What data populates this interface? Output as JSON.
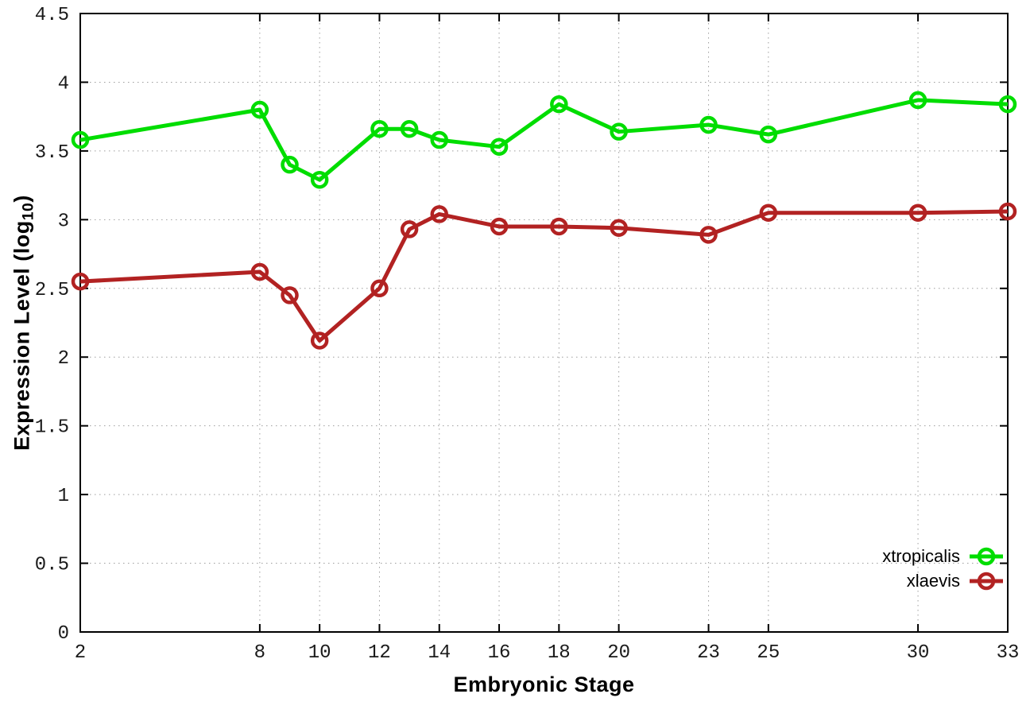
{
  "chart_data": {
    "type": "line",
    "title": "",
    "xlabel": "Embryonic Stage",
    "ylabel_main": "Expression Level (log",
    "ylabel_sub": "10",
    "ylabel_end": ")",
    "xlim": [
      2,
      33
    ],
    "ylim": [
      0,
      4.5
    ],
    "grid": true,
    "legend_position": "bottom-right",
    "x_ticks": [
      2,
      8,
      10,
      12,
      14,
      16,
      18,
      20,
      23,
      25,
      30,
      33
    ],
    "y_ticks": [
      0,
      0.5,
      1,
      1.5,
      2,
      2.5,
      3,
      3.5,
      4,
      4.5
    ],
    "x": [
      2,
      8,
      9,
      10,
      12,
      13,
      14,
      16,
      18,
      20,
      23,
      25,
      30,
      33
    ],
    "series": [
      {
        "name": "xtropicalis",
        "color": "#00dd00",
        "values": [
          3.58,
          3.8,
          3.4,
          3.29,
          3.66,
          3.66,
          3.58,
          3.53,
          3.84,
          3.64,
          3.69,
          3.62,
          3.87,
          3.84
        ]
      },
      {
        "name": "xlaevis",
        "color": "#b22222",
        "values": [
          2.55,
          2.62,
          2.45,
          2.12,
          2.5,
          2.93,
          3.04,
          2.95,
          2.95,
          2.94,
          2.89,
          3.05,
          3.05,
          3.06
        ]
      }
    ],
    "colors": {
      "axis": "#000000",
      "grid": "#9e9e9e",
      "tick_text": "#1a1a1a"
    }
  }
}
